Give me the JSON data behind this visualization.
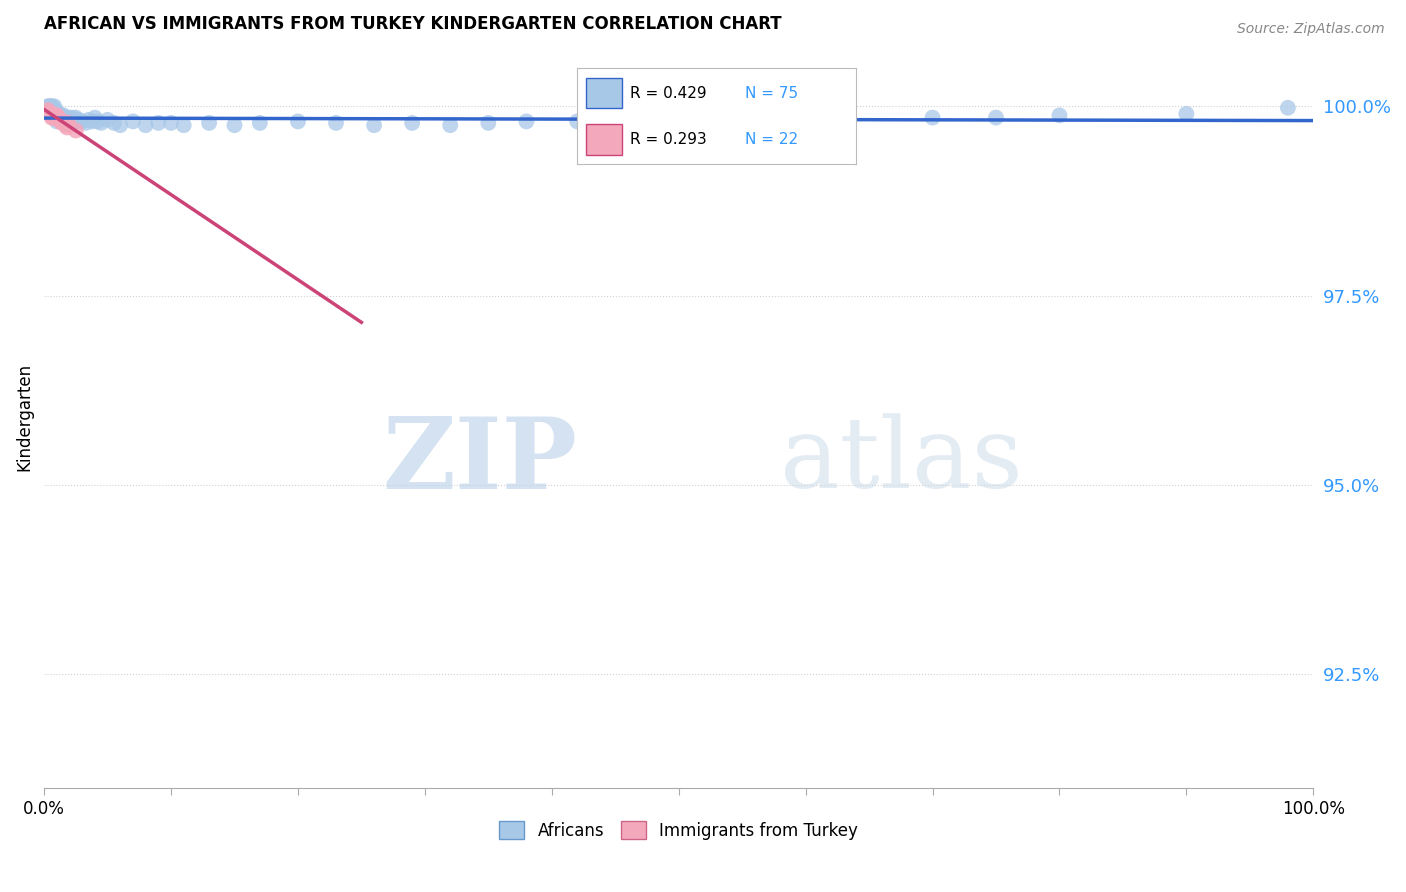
{
  "title": "AFRICAN VS IMMIGRANTS FROM TURKEY KINDERGARTEN CORRELATION CHART",
  "source": "Source: ZipAtlas.com",
  "xlabel": "",
  "ylabel": "Kindergarten",
  "xlim": [
    0.0,
    1.0
  ],
  "ylim": [
    0.91,
    1.008
  ],
  "yticks": [
    0.925,
    0.95,
    0.975,
    1.0
  ],
  "ytick_labels": [
    "92.5%",
    "95.0%",
    "97.5%",
    "100.0%"
  ],
  "xtick_labels": [
    "0.0%",
    "",
    "",
    "",
    "",
    "",
    "",
    "",
    "",
    "",
    "100.0%"
  ],
  "xticks": [
    0.0,
    0.1,
    0.2,
    0.3,
    0.4,
    0.5,
    0.6,
    0.7,
    0.8,
    0.9,
    1.0
  ],
  "legend_labels": [
    "Africans",
    "Immigrants from Turkey"
  ],
  "blue_R": 0.429,
  "blue_N": 75,
  "pink_R": 0.293,
  "pink_N": 22,
  "blue_color": "#a8c8e8",
  "pink_color": "#f4a8bc",
  "blue_line_color": "#3366cc",
  "pink_line_color": "#cc4477",
  "watermark_zip": "ZIP",
  "watermark_atlas": "atlas",
  "blue_x": [
    0.002,
    0.003,
    0.004,
    0.005,
    0.005,
    0.006,
    0.006,
    0.007,
    0.007,
    0.008,
    0.008,
    0.009,
    0.009,
    0.01,
    0.01,
    0.01,
    0.011,
    0.011,
    0.012,
    0.012,
    0.013,
    0.013,
    0.014,
    0.014,
    0.015,
    0.015,
    0.016,
    0.016,
    0.017,
    0.018,
    0.019,
    0.019,
    0.02,
    0.021,
    0.022,
    0.023,
    0.024,
    0.025,
    0.027,
    0.028,
    0.03,
    0.033,
    0.035,
    0.038,
    0.04,
    0.042,
    0.045,
    0.05,
    0.055,
    0.06,
    0.07,
    0.08,
    0.09,
    0.1,
    0.11,
    0.13,
    0.15,
    0.17,
    0.2,
    0.23,
    0.26,
    0.29,
    0.32,
    0.35,
    0.38,
    0.42,
    0.46,
    0.5,
    0.56,
    0.62,
    0.7,
    0.75,
    0.8,
    0.9,
    0.98
  ],
  "blue_y": [
    0.9995,
    1.0,
    1.0,
    1.0,
    0.9998,
    1.0,
    0.9995,
    0.9998,
    0.9992,
    1.0,
    0.9988,
    0.9995,
    0.999,
    0.9992,
    0.9985,
    0.998,
    0.9988,
    0.9984,
    0.999,
    0.9985,
    0.9988,
    0.9982,
    0.9985,
    0.998,
    0.9988,
    0.9982,
    0.9985,
    0.998,
    0.9982,
    0.998,
    0.9985,
    0.9978,
    0.9982,
    0.998,
    0.9985,
    0.9982,
    0.998,
    0.9985,
    0.9982,
    0.998,
    0.998,
    0.9978,
    0.9982,
    0.998,
    0.9985,
    0.998,
    0.9978,
    0.9982,
    0.9978,
    0.9975,
    0.998,
    0.9975,
    0.9978,
    0.9978,
    0.9975,
    0.9978,
    0.9975,
    0.9978,
    0.998,
    0.9978,
    0.9975,
    0.9978,
    0.9975,
    0.9978,
    0.998,
    0.998,
    0.9978,
    0.996,
    0.9982,
    0.9984,
    0.9985,
    0.9985,
    0.9988,
    0.999,
    0.9998
  ],
  "pink_x": [
    0.003,
    0.004,
    0.005,
    0.006,
    0.006,
    0.007,
    0.007,
    0.008,
    0.008,
    0.009,
    0.01,
    0.01,
    0.011,
    0.012,
    0.013,
    0.014,
    0.015,
    0.016,
    0.017,
    0.018,
    0.019,
    0.025
  ],
  "pink_y": [
    0.9995,
    0.9992,
    0.999,
    0.9988,
    0.9985,
    0.9988,
    0.9985,
    0.9988,
    0.9985,
    0.9988,
    0.9988,
    0.9985,
    0.9985,
    0.9982,
    0.998,
    0.9978,
    0.998,
    0.9978,
    0.9975,
    0.9972,
    0.9978,
    0.9968
  ]
}
